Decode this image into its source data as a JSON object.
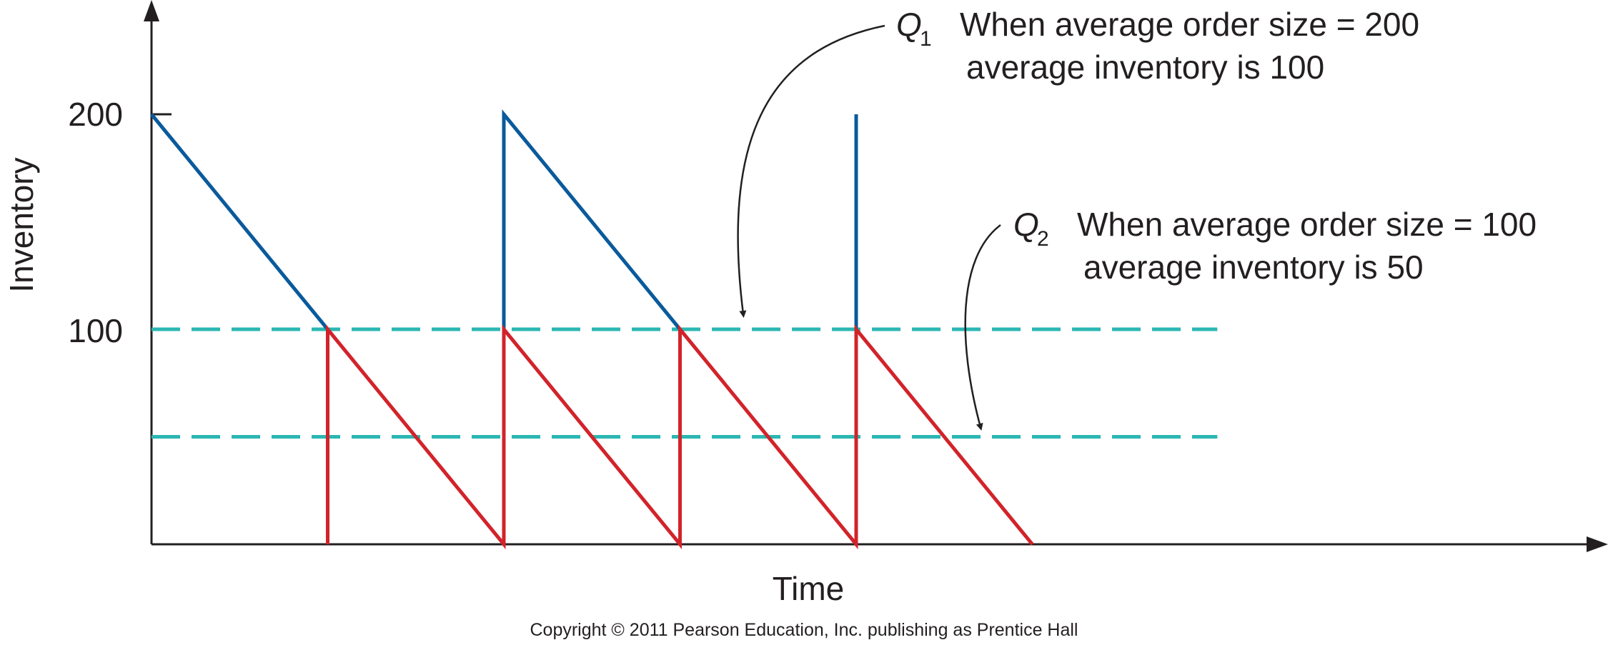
{
  "chart_data": {
    "type": "line",
    "xlabel": "Time",
    "ylabel": "Inventory",
    "y_ticks": [
      "200",
      "100"
    ],
    "y_tick_values": [
      200,
      100
    ],
    "ylim": [
      0,
      200
    ],
    "xlim": [
      0,
      8
    ],
    "grid": false,
    "series": [
      {
        "name": "Q1",
        "color": "#0a5a9c",
        "segments": [
          [
            [
              0,
              200
            ],
            [
              1,
              100
            ]
          ],
          [
            [
              2,
              100
            ],
            [
              2,
              200
            ],
            [
              3,
              100
            ]
          ],
          [
            [
              4,
              100
            ],
            [
              4,
              200
            ]
          ]
        ]
      },
      {
        "name": "Q2",
        "color": "#d2232a",
        "segments": [
          [
            [
              1,
              0
            ],
            [
              1,
              100
            ],
            [
              2,
              0
            ],
            [
              2,
              100
            ],
            [
              3,
              0
            ],
            [
              3,
              100
            ],
            [
              4,
              0
            ],
            [
              4,
              100
            ],
            [
              5,
              0
            ]
          ]
        ]
      }
    ],
    "reference_lines": [
      {
        "y": 100,
        "color": "#2bb7b3",
        "style": "dashed",
        "x_end": 6.05
      },
      {
        "y": 50,
        "color": "#2bb7b3",
        "style": "dashed",
        "x_end": 6.05
      }
    ],
    "annotations": [
      {
        "label": "Q",
        "subscript": "1",
        "line1": "When average order size = 200",
        "line2": "average inventory is 100",
        "points_to": [
          3.35,
          100
        ]
      },
      {
        "label": "Q",
        "subscript": "2",
        "line1": "When average order size = 100",
        "line2": "average inventory is 50",
        "points_to": [
          4.7,
          50
        ]
      }
    ]
  },
  "footer": {
    "copyright": "Copyright © 2011 Pearson Education, Inc. publishing as Prentice Hall"
  }
}
